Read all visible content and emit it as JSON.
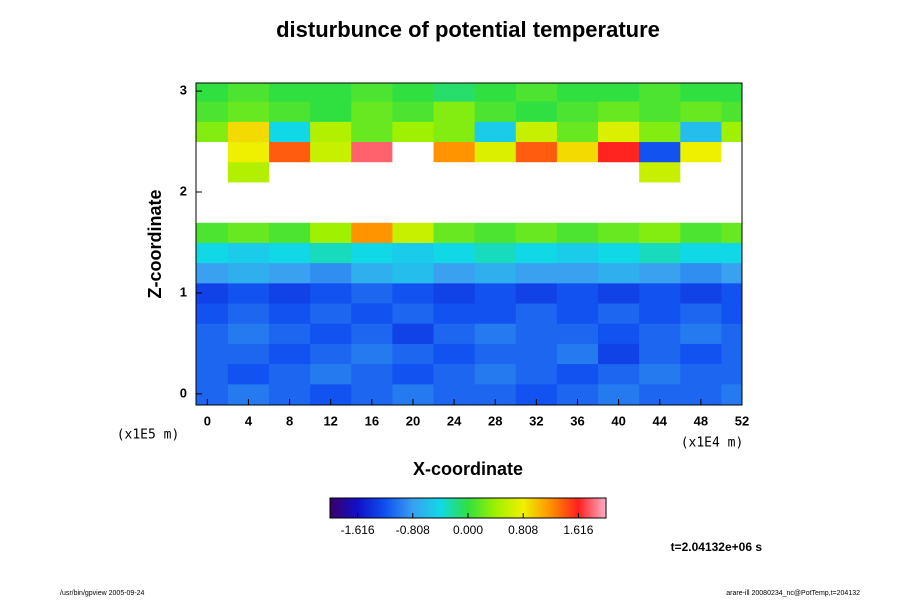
{
  "chart_data": {
    "type": "heatmap",
    "title": "disturbunce of potential temperature",
    "xlabel": "X-coordinate",
    "ylabel": "Z-coordinate",
    "xunit": "(x1E4 m)",
    "yunit": "(x1E5 m)",
    "time_label": "t=2.04132e+06 s",
    "footer_left": "/usr/bin/gpview 2005-09-24",
    "footer_right": "arare-ill 20080234_nc@PotTemp,t=204132",
    "xlim": [
      -1.1,
      52
    ],
    "ylim": [
      -0.11,
      3.08
    ],
    "xticks": [
      0,
      4,
      8,
      12,
      16,
      20,
      24,
      28,
      32,
      36,
      40,
      44,
      48,
      52
    ],
    "yticks": [
      0,
      1,
      2,
      3
    ],
    "x_edges": [
      -1.1,
      2,
      6,
      10,
      14,
      18,
      22,
      26,
      30,
      34,
      38,
      42,
      46,
      50,
      52
    ],
    "y_edges": [
      -0.11,
      0.1,
      0.3,
      0.5,
      0.7,
      0.9,
      1.1,
      1.3,
      1.5,
      1.7,
      1.9,
      2.1,
      2.3,
      2.5,
      2.7,
      2.9,
      3.08
    ],
    "values": [
      [
        -1.1,
        -1.0,
        -1.1,
        -1.2,
        -1.1,
        -1.0,
        -1.1,
        -1.1,
        -1.2,
        -1.1,
        -1.0,
        -1.1,
        -1.1,
        -1.0
      ],
      [
        -1.1,
        -1.2,
        -1.1,
        -1.0,
        -1.1,
        -1.2,
        -1.1,
        -1.0,
        -1.1,
        -1.2,
        -1.1,
        -1.0,
        -1.1,
        -1.1
      ],
      [
        -1.1,
        -1.1,
        -1.2,
        -1.1,
        -1.0,
        -1.1,
        -1.2,
        -1.1,
        -1.1,
        -1.0,
        -1.3,
        -1.1,
        -1.2,
        -1.1
      ],
      [
        -1.1,
        -1.0,
        -1.1,
        -1.2,
        -1.1,
        -1.3,
        -1.1,
        -1.0,
        -1.1,
        -1.1,
        -1.2,
        -1.1,
        -1.0,
        -1.1
      ],
      [
        -1.2,
        -1.1,
        -1.2,
        -1.1,
        -1.2,
        -1.1,
        -1.2,
        -1.2,
        -1.1,
        -1.2,
        -1.1,
        -1.2,
        -1.1,
        -1.2
      ],
      [
        -1.3,
        -1.2,
        -1.3,
        -1.2,
        -1.1,
        -1.2,
        -1.3,
        -1.2,
        -1.3,
        -1.2,
        -1.3,
        -1.2,
        -1.3,
        -1.2
      ],
      [
        -0.8,
        -0.7,
        -0.8,
        -0.9,
        -0.7,
        -0.6,
        -0.8,
        -0.7,
        -0.8,
        -0.8,
        -0.7,
        -0.8,
        -0.9,
        -0.8
      ],
      [
        -0.4,
        -0.5,
        -0.4,
        -0.3,
        -0.4,
        -0.5,
        -0.4,
        -0.3,
        -0.4,
        -0.5,
        -0.4,
        -0.3,
        -0.4,
        -0.4
      ],
      [
        0.1,
        0.2,
        0.1,
        0.4,
        1.2,
        0.6,
        0.2,
        0.1,
        0.2,
        0.1,
        0.2,
        0.3,
        0.1,
        0.2
      ],
      [
        2.5,
        2.5,
        2.5,
        2.5,
        2.5,
        2.5,
        2.5,
        2.5,
        2.5,
        2.5,
        2.5,
        2.5,
        2.5,
        2.5
      ],
      [
        2.5,
        2.5,
        2.5,
        2.5,
        2.5,
        2.5,
        2.5,
        2.5,
        2.5,
        2.5,
        2.5,
        2.5,
        2.5,
        2.5
      ],
      [
        2.3,
        0.5,
        2.3,
        2.3,
        2.3,
        2.3,
        2.3,
        2.3,
        2.3,
        2.3,
        2.3,
        0.6,
        2.3,
        2.3
      ],
      [
        2.3,
        0.8,
        1.4,
        0.6,
        1.8,
        2.3,
        1.2,
        0.7,
        1.4,
        0.9,
        1.6,
        -1.2,
        0.8,
        2.3
      ],
      [
        0.3,
        0.9,
        -0.4,
        0.5,
        0.2,
        0.4,
        0.3,
        -0.5,
        0.6,
        0.2,
        0.7,
        0.3,
        -0.6,
        0.4
      ],
      [
        0.1,
        0.2,
        0.1,
        0.0,
        0.2,
        0.1,
        0.3,
        0.1,
        0.0,
        0.1,
        0.2,
        0.1,
        0.2,
        0.1
      ],
      [
        0.0,
        0.1,
        0.0,
        0.0,
        0.1,
        0.0,
        -0.1,
        0.0,
        0.1,
        0.0,
        0.0,
        0.1,
        0.0,
        0.0
      ]
    ],
    "clim": [
      -2.02,
      2.02
    ],
    "colorbar_ticks": [
      -1.616,
      -0.808,
      {
        "value": 0,
        "label": "0.000"
      },
      0.808,
      1.616
    ]
  }
}
